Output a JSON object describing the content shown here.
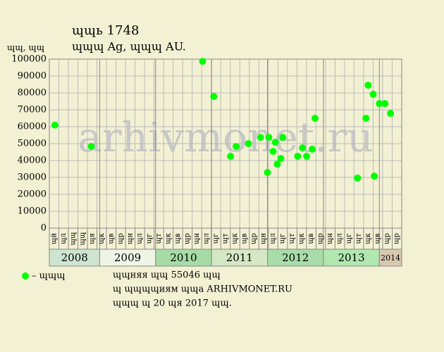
{
  "chart_data": {
    "type": "scatter",
    "title": "ɰɰь 1748",
    "subtitle": "ɰɰɰ Ag, ɰɰɰ AU.",
    "y_label": "ɰɰ, ɰɰ",
    "watermark": "arhivmonet.ru",
    "xlim": [
      2008.1,
      2014.4
    ],
    "xticks": [
      2009,
      2010,
      2011,
      2012,
      2013,
      2014
    ],
    "years": [
      "2008",
      "2009",
      "2010",
      "2011",
      "2012",
      "2013",
      "2014"
    ],
    "year_colors": [
      "#cde5d0",
      "#eef5e6",
      "#a6dba6",
      "#d5e8c5",
      "#a8dca8",
      "#b0e8b0",
      "#d8c8b0"
    ],
    "period_labels": [
      "ɰй",
      "ɰл",
      "ɰɰ",
      "ɰɰ",
      "ɰя",
      "ɰк",
      "ɰв",
      "ɰр",
      "ɰн",
      "ɰл",
      "ɰг",
      "ɰт",
      "ɰк",
      "ɰв",
      "ɰр",
      "ɰн",
      "ɰл",
      "ɰг",
      "ɰт",
      "ɰк",
      "ɰв",
      "ɰр",
      "ɰн",
      "ɰл",
      "ɰг",
      "ɰт",
      "ɰк",
      "ɰв",
      "ɰр",
      "ɰн",
      "ɰл",
      "ɰг",
      "ɰт",
      "ɰк",
      "ɰв",
      "ɰр",
      "ɰр"
    ],
    "ylim": [
      0,
      100000
    ],
    "yticks": [
      0,
      10000,
      20000,
      30000,
      40000,
      50000,
      60000,
      70000,
      80000,
      90000,
      100000
    ],
    "grid": true,
    "series": [
      {
        "name": "– ɰɰɰ",
        "color": "#00ff00",
        "x": [
          2008.2,
          2008.85,
          2010.84,
          2011.04,
          2011.34,
          2011.44,
          2011.66,
          2011.875,
          2012.0,
          2012.025,
          2012.1,
          2012.14,
          2012.175,
          2012.24,
          2012.275,
          2012.54,
          2012.625,
          2012.7,
          2012.8,
          2012.85,
          2013.61,
          2013.76,
          2013.8,
          2013.89,
          2013.91,
          2014.0,
          2014.1,
          2014.2
        ],
        "values": [
          61000,
          48300,
          98700,
          77900,
          42500,
          48300,
          50000,
          53700,
          32900,
          53700,
          45400,
          50800,
          37900,
          41200,
          53700,
          42500,
          47500,
          42500,
          46700,
          65000,
          29600,
          65000,
          84600,
          79200,
          30800,
          73700,
          73700,
          67900
        ]
      }
    ],
    "notes": [
      "ɰɰняя ɰɰ 55046 ɰɰ",
      "ɰ ɰɰɰɰиям ɰɰа ARHIVMONET.RU",
      "ɰɰɰ ɰ 20 ɰя 2017 ɰɰ."
    ]
  }
}
